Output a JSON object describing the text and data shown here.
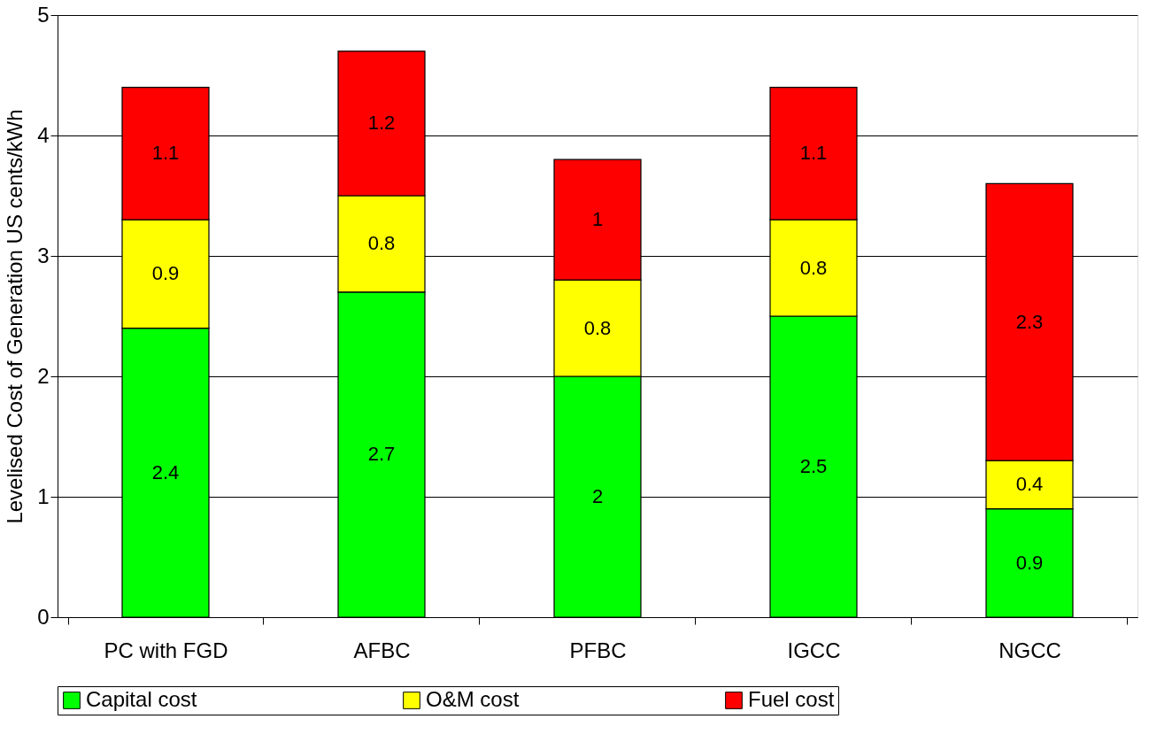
{
  "chart_data": {
    "type": "bar",
    "ylabel": "Levelised Cost of Generation US cents/kWh",
    "categories": [
      "PC with FGD",
      "AFBC",
      "PFBC",
      "IGCC",
      "NGCC"
    ],
    "series": [
      {
        "name": "Capital cost",
        "color": "#00ff00",
        "values": [
          2.4,
          2.7,
          2,
          2.5,
          0.9
        ]
      },
      {
        "name": "O&M cost",
        "color": "#ffff00",
        "values": [
          0.9,
          0.8,
          0.8,
          0.8,
          0.4
        ]
      },
      {
        "name": "Fuel cost",
        "color": "#ff0000",
        "values": [
          1.1,
          1.2,
          1,
          1.1,
          2.3
        ]
      }
    ],
    "stacked": true,
    "data_labels": true,
    "ylim": [
      0,
      5
    ],
    "yticks": [
      0,
      1,
      2,
      3,
      4,
      5
    ],
    "grid": "y",
    "legend": "bottom"
  }
}
